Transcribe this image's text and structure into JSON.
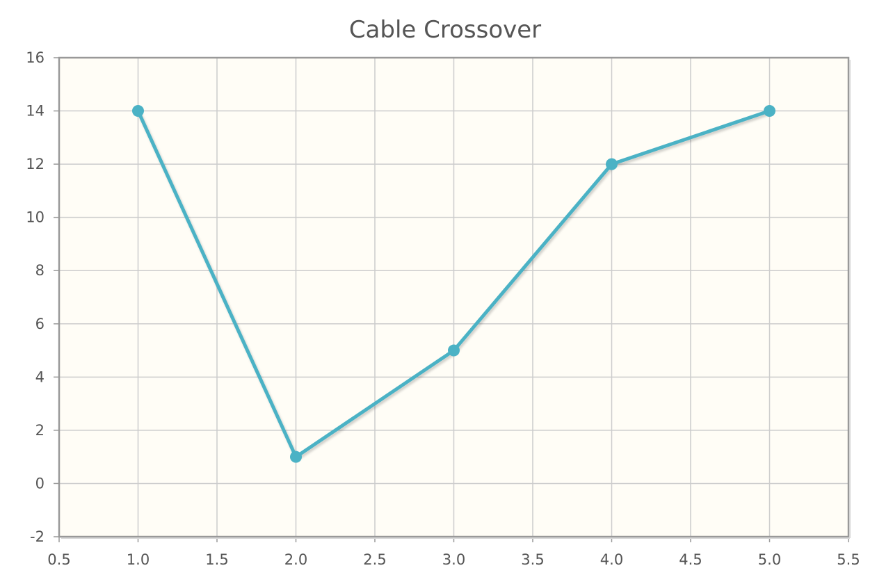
{
  "chart_data": {
    "type": "line",
    "title": "Cable Crossover",
    "xlabel": "",
    "ylabel": "",
    "xlim": [
      0.5,
      5.5
    ],
    "ylim": [
      -2,
      16
    ],
    "x_ticks": [
      "0.5",
      "1.0",
      "1.5",
      "2.0",
      "2.5",
      "3.0",
      "3.5",
      "4.0",
      "4.5",
      "5.0",
      "5.5"
    ],
    "y_ticks": [
      "-2",
      "0",
      "2",
      "4",
      "6",
      "8",
      "10",
      "12",
      "14",
      "16"
    ],
    "grid": true,
    "legend": "none",
    "series": [
      {
        "x": [
          1,
          2,
          3,
          4,
          5
        ],
        "y": [
          14,
          1,
          5,
          12,
          14
        ],
        "color": "#4bb2c5"
      }
    ],
    "colors": {
      "plot_background": "#fffdf6",
      "grid": "#cccccc",
      "axis": "#999999",
      "text": "#555555"
    }
  }
}
